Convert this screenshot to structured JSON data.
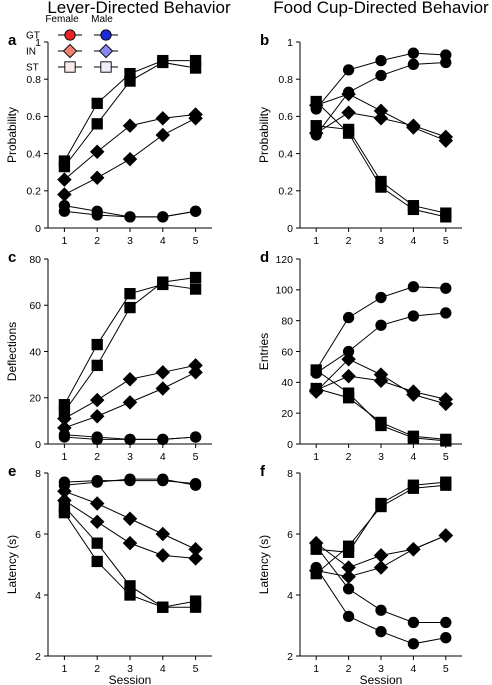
{
  "figure": {
    "column_titles": [
      "Lever-Directed Behavior",
      "Food Cup-Directed Behavior"
    ],
    "colors": {
      "GT_female": "#e8262a",
      "GT_male": "#1f2bd6",
      "IN_female": "#f08072",
      "IN_male": "#8a86ef",
      "ST_female": "#fbeaea",
      "ST_male": "#eeecf9",
      "outline": "#000000"
    },
    "legend": {
      "sex_labels": [
        "Female",
        "Male"
      ],
      "groups": [
        "GT",
        "IN",
        "ST"
      ],
      "markers": {
        "GT": "circle",
        "IN": "diamond",
        "ST": "square"
      }
    }
  },
  "chart_data": [
    {
      "panel": "a",
      "type": "line",
      "title": "",
      "xlabel": "",
      "ylabel": "Probability",
      "x": [
        1,
        2,
        3,
        4,
        5
      ],
      "xlim": [
        0.5,
        5.5
      ],
      "ylim": [
        0,
        1
      ],
      "yticks": [
        0,
        0.2,
        0.4,
        0.6,
        0.8,
        1
      ],
      "ytick_labels": [
        "0",
        "0.2",
        "0.4",
        "0.6",
        "0.8",
        "1"
      ],
      "series": [
        {
          "name": "GT Female",
          "values": [
            0.12,
            0.09,
            0.06,
            0.06,
            0.09
          ]
        },
        {
          "name": "GT Male",
          "values": [
            0.09,
            0.07,
            0.06,
            0.06,
            0.09
          ]
        },
        {
          "name": "IN Female",
          "values": [
            0.26,
            0.41,
            0.55,
            0.59,
            0.61
          ]
        },
        {
          "name": "IN Male",
          "values": [
            0.18,
            0.27,
            0.37,
            0.5,
            0.59
          ]
        },
        {
          "name": "ST Female",
          "values": [
            0.36,
            0.67,
            0.83,
            0.9,
            0.9
          ]
        },
        {
          "name": "ST Male",
          "values": [
            0.33,
            0.56,
            0.79,
            0.89,
            0.86
          ]
        }
      ]
    },
    {
      "panel": "b",
      "type": "line",
      "title": "",
      "xlabel": "",
      "ylabel": "Probability",
      "x": [
        1,
        2,
        3,
        4,
        5
      ],
      "xlim": [
        0.5,
        5.5
      ],
      "ylim": [
        0,
        1
      ],
      "yticks": [
        0,
        0.2,
        0.4,
        0.6,
        0.8,
        1
      ],
      "ytick_labels": [
        "0",
        "0.2",
        "0.4",
        "0.6",
        "0.8",
        "1"
      ],
      "series": [
        {
          "name": "GT Female",
          "values": [
            0.64,
            0.85,
            0.9,
            0.94,
            0.93
          ]
        },
        {
          "name": "GT Male",
          "values": [
            0.5,
            0.73,
            0.82,
            0.88,
            0.89
          ]
        },
        {
          "name": "IN Female",
          "values": [
            0.66,
            0.72,
            0.63,
            0.54,
            0.47
          ]
        },
        {
          "name": "IN Male",
          "values": [
            0.51,
            0.62,
            0.59,
            0.55,
            0.49
          ]
        },
        {
          "name": "ST Female",
          "values": [
            0.68,
            0.51,
            0.22,
            0.1,
            0.06
          ]
        },
        {
          "name": "ST Male",
          "values": [
            0.55,
            0.53,
            0.25,
            0.12,
            0.08
          ]
        }
      ]
    },
    {
      "panel": "c",
      "type": "line",
      "title": "",
      "xlabel": "",
      "ylabel": "Deflections",
      "x": [
        1,
        2,
        3,
        4,
        5
      ],
      "xlim": [
        0.5,
        5.5
      ],
      "ylim": [
        0,
        80
      ],
      "yticks": [
        0,
        20,
        40,
        60,
        80
      ],
      "ytick_labels": [
        "0",
        "20",
        "40",
        "60",
        "80"
      ],
      "series": [
        {
          "name": "GT Female",
          "values": [
            4,
            3,
            2,
            2,
            3
          ]
        },
        {
          "name": "GT Male",
          "values": [
            3,
            2,
            2,
            2,
            3
          ]
        },
        {
          "name": "IN Female",
          "values": [
            11,
            19,
            28,
            31,
            34
          ]
        },
        {
          "name": "IN Male",
          "values": [
            7,
            12,
            18,
            24,
            31
          ]
        },
        {
          "name": "ST Female",
          "values": [
            17,
            43,
            65,
            69,
            67
          ]
        },
        {
          "name": "ST Male",
          "values": [
            14,
            34,
            59,
            70,
            72
          ]
        }
      ]
    },
    {
      "panel": "d",
      "type": "line",
      "title": "",
      "xlabel": "",
      "ylabel": "Entries",
      "x": [
        1,
        2,
        3,
        4,
        5
      ],
      "xlim": [
        0.5,
        5.5
      ],
      "ylim": [
        0,
        120
      ],
      "yticks": [
        0,
        20,
        40,
        60,
        80,
        100,
        120
      ],
      "ytick_labels": [
        "0",
        "20",
        "40",
        "60",
        "80",
        "100",
        "120"
      ],
      "series": [
        {
          "name": "GT Female",
          "values": [
            48,
            82,
            95,
            102,
            101
          ]
        },
        {
          "name": "GT Male",
          "values": [
            46,
            60,
            77,
            83,
            85
          ]
        },
        {
          "name": "IN Female",
          "values": [
            34,
            55,
            45,
            32,
            26
          ]
        },
        {
          "name": "IN Male",
          "values": [
            35,
            44,
            41,
            34,
            29
          ]
        },
        {
          "name": "ST Female",
          "values": [
            48,
            33,
            12,
            4,
            2
          ]
        },
        {
          "name": "ST Male",
          "values": [
            36,
            30,
            14,
            5,
            3
          ]
        }
      ]
    },
    {
      "panel": "e",
      "type": "line",
      "title": "",
      "xlabel": "Session",
      "ylabel": "Latency (s)",
      "x": [
        1,
        2,
        3,
        4,
        5
      ],
      "xlim": [
        0.5,
        5.5
      ],
      "ylim": [
        2,
        8
      ],
      "yticks": [
        2,
        4,
        6,
        8
      ],
      "ytick_labels": [
        "2",
        "4",
        "6",
        "8"
      ],
      "series": [
        {
          "name": "GT Female",
          "values": [
            7.6,
            7.7,
            7.8,
            7.8,
            7.6
          ]
        },
        {
          "name": "GT Male",
          "values": [
            7.7,
            7.75,
            7.75,
            7.75,
            7.65
          ]
        },
        {
          "name": "IN Female",
          "values": [
            7.1,
            6.4,
            5.7,
            5.3,
            5.2
          ]
        },
        {
          "name": "IN Male",
          "values": [
            7.4,
            7.0,
            6.5,
            6.0,
            5.5
          ]
        },
        {
          "name": "ST Female",
          "values": [
            6.7,
            5.1,
            4.0,
            3.6,
            3.8
          ]
        },
        {
          "name": "ST Male",
          "values": [
            6.9,
            5.7,
            4.3,
            3.6,
            3.6
          ]
        }
      ]
    },
    {
      "panel": "f",
      "type": "line",
      "title": "",
      "xlabel": "Session",
      "ylabel": "Latency (s)",
      "x": [
        1,
        2,
        3,
        4,
        5
      ],
      "xlim": [
        0.5,
        5.5
      ],
      "ylim": [
        2,
        8
      ],
      "yticks": [
        2,
        4,
        6,
        8
      ],
      "ytick_labels": [
        "2",
        "4",
        "6",
        "8"
      ],
      "series": [
        {
          "name": "GT Female",
          "values": [
            4.9,
            3.3,
            2.8,
            2.4,
            2.6
          ]
        },
        {
          "name": "GT Male",
          "values": [
            5.6,
            4.2,
            3.5,
            3.1,
            3.1
          ]
        },
        {
          "name": "IN Female",
          "values": [
            4.8,
            4.6,
            4.9,
            5.5,
            5.95
          ]
        },
        {
          "name": "IN Male",
          "values": [
            5.7,
            4.9,
            5.3,
            5.5,
            5.95
          ]
        },
        {
          "name": "ST Female",
          "values": [
            4.7,
            5.6,
            6.9,
            7.5,
            7.6
          ]
        },
        {
          "name": "ST Male",
          "values": [
            5.5,
            5.4,
            7.0,
            7.6,
            7.7
          ]
        }
      ]
    }
  ]
}
